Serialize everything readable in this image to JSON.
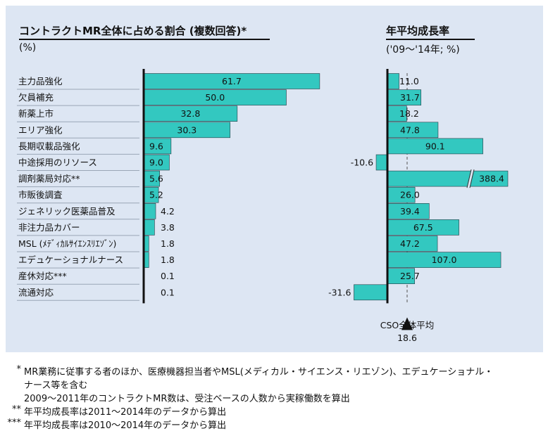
{
  "chart_data": [
    {
      "type": "bar",
      "orientation": "horizontal",
      "title": "コントラクトMR全体に占める割合 (複数回答)*",
      "unit": "(%)",
      "categories": [
        "主力品強化",
        "欠員補充",
        "新薬上市",
        "エリア強化",
        "長期収載品強化",
        "中途採用のリソース",
        "調剤薬局対応**",
        "市販後調査",
        "ジェネリック医薬品普及",
        "非注力品カバー",
        "MSL (ﾒﾃﾞｨｶﾙｻｲｴﾝｽﾘｴｿﾞﾝ)",
        "エデュケーショナルナース",
        "産休対応***",
        "流通対応"
      ],
      "values": [
        61.7,
        50.0,
        32.8,
        30.3,
        9.6,
        9.0,
        5.6,
        5.2,
        4.2,
        3.8,
        1.8,
        1.8,
        0.1,
        0.1
      ],
      "value_labels": [
        "61.7",
        "50.0",
        "32.8",
        "30.3",
        "9.6",
        "9.0",
        "5.6",
        "5.2",
        "4.2",
        "3.8",
        "1.8",
        "1.8",
        "0.1",
        "0.1"
      ],
      "bar_color": "#33c8c0"
    },
    {
      "type": "bar",
      "orientation": "horizontal",
      "title": "年平均成長率",
      "unit": "('09～'14年; %)",
      "values": [
        11.0,
        31.7,
        18.2,
        47.8,
        90.1,
        -10.6,
        388.4,
        26.0,
        39.4,
        67.5,
        47.2,
        107.0,
        25.7,
        -31.6
      ],
      "value_labels": [
        "11.0",
        "31.7",
        "18.2",
        "47.8",
        "90.1",
        "-10.6",
        "388.4",
        "26.0",
        "39.4",
        "67.5",
        "47.2",
        "107.0",
        "25.7",
        "-31.6"
      ],
      "axis_break": "調剤薬局対応**",
      "reference_line": {
        "label": "CSO全体平均",
        "value": 18.6,
        "value_label": "18.6"
      },
      "bar_color": "#33c8c0"
    }
  ],
  "footnotes": [
    {
      "mark": "*",
      "lines": [
        "MR業務に従事する者のほか、医療機器担当者やMSL(メディカル・サイエンス・リエゾン)、エデュケーショナル・",
        "ナース等を含む",
        "2009～2011年のコントラクトMR数は、受注ベースの人数から実稼働数を算出"
      ]
    },
    {
      "mark": "**",
      "lines": [
        "年平均成長率は2011～2014年のデータから算出"
      ]
    },
    {
      "mark": "***",
      "lines": [
        "年平均成長率は2010～2014年のデータから算出"
      ]
    }
  ]
}
